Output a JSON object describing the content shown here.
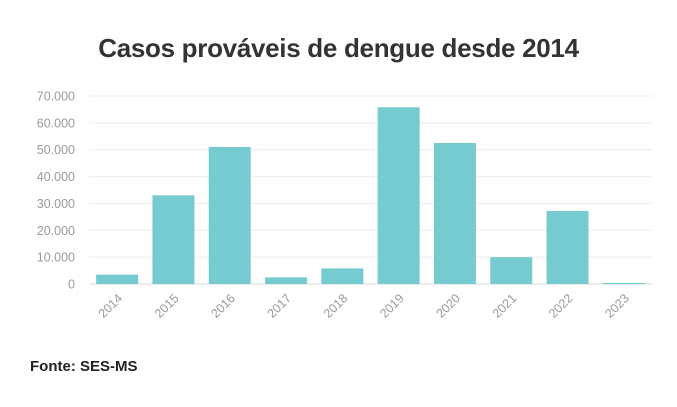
{
  "chart_data": {
    "type": "bar",
    "title": "Casos prováveis de dengue desde 2014",
    "categories": [
      "2014",
      "2015",
      "2016",
      "2017",
      "2018",
      "2019",
      "2020",
      "2021",
      "2022",
      "2023"
    ],
    "series": [
      {
        "values": [
          3500,
          33000,
          51000,
          2500,
          5800,
          65800,
          52500,
          10000,
          27200,
          400
        ]
      }
    ],
    "ylim": [
      0,
      70000
    ],
    "ytick_labels": [
      "0",
      "10.000",
      "20.000",
      "30.000",
      "40.000",
      "50.000",
      "60.000",
      "70.000"
    ],
    "bar_color": "#76cbd0",
    "grid": true
  },
  "source": "Fonte: SES-MS"
}
